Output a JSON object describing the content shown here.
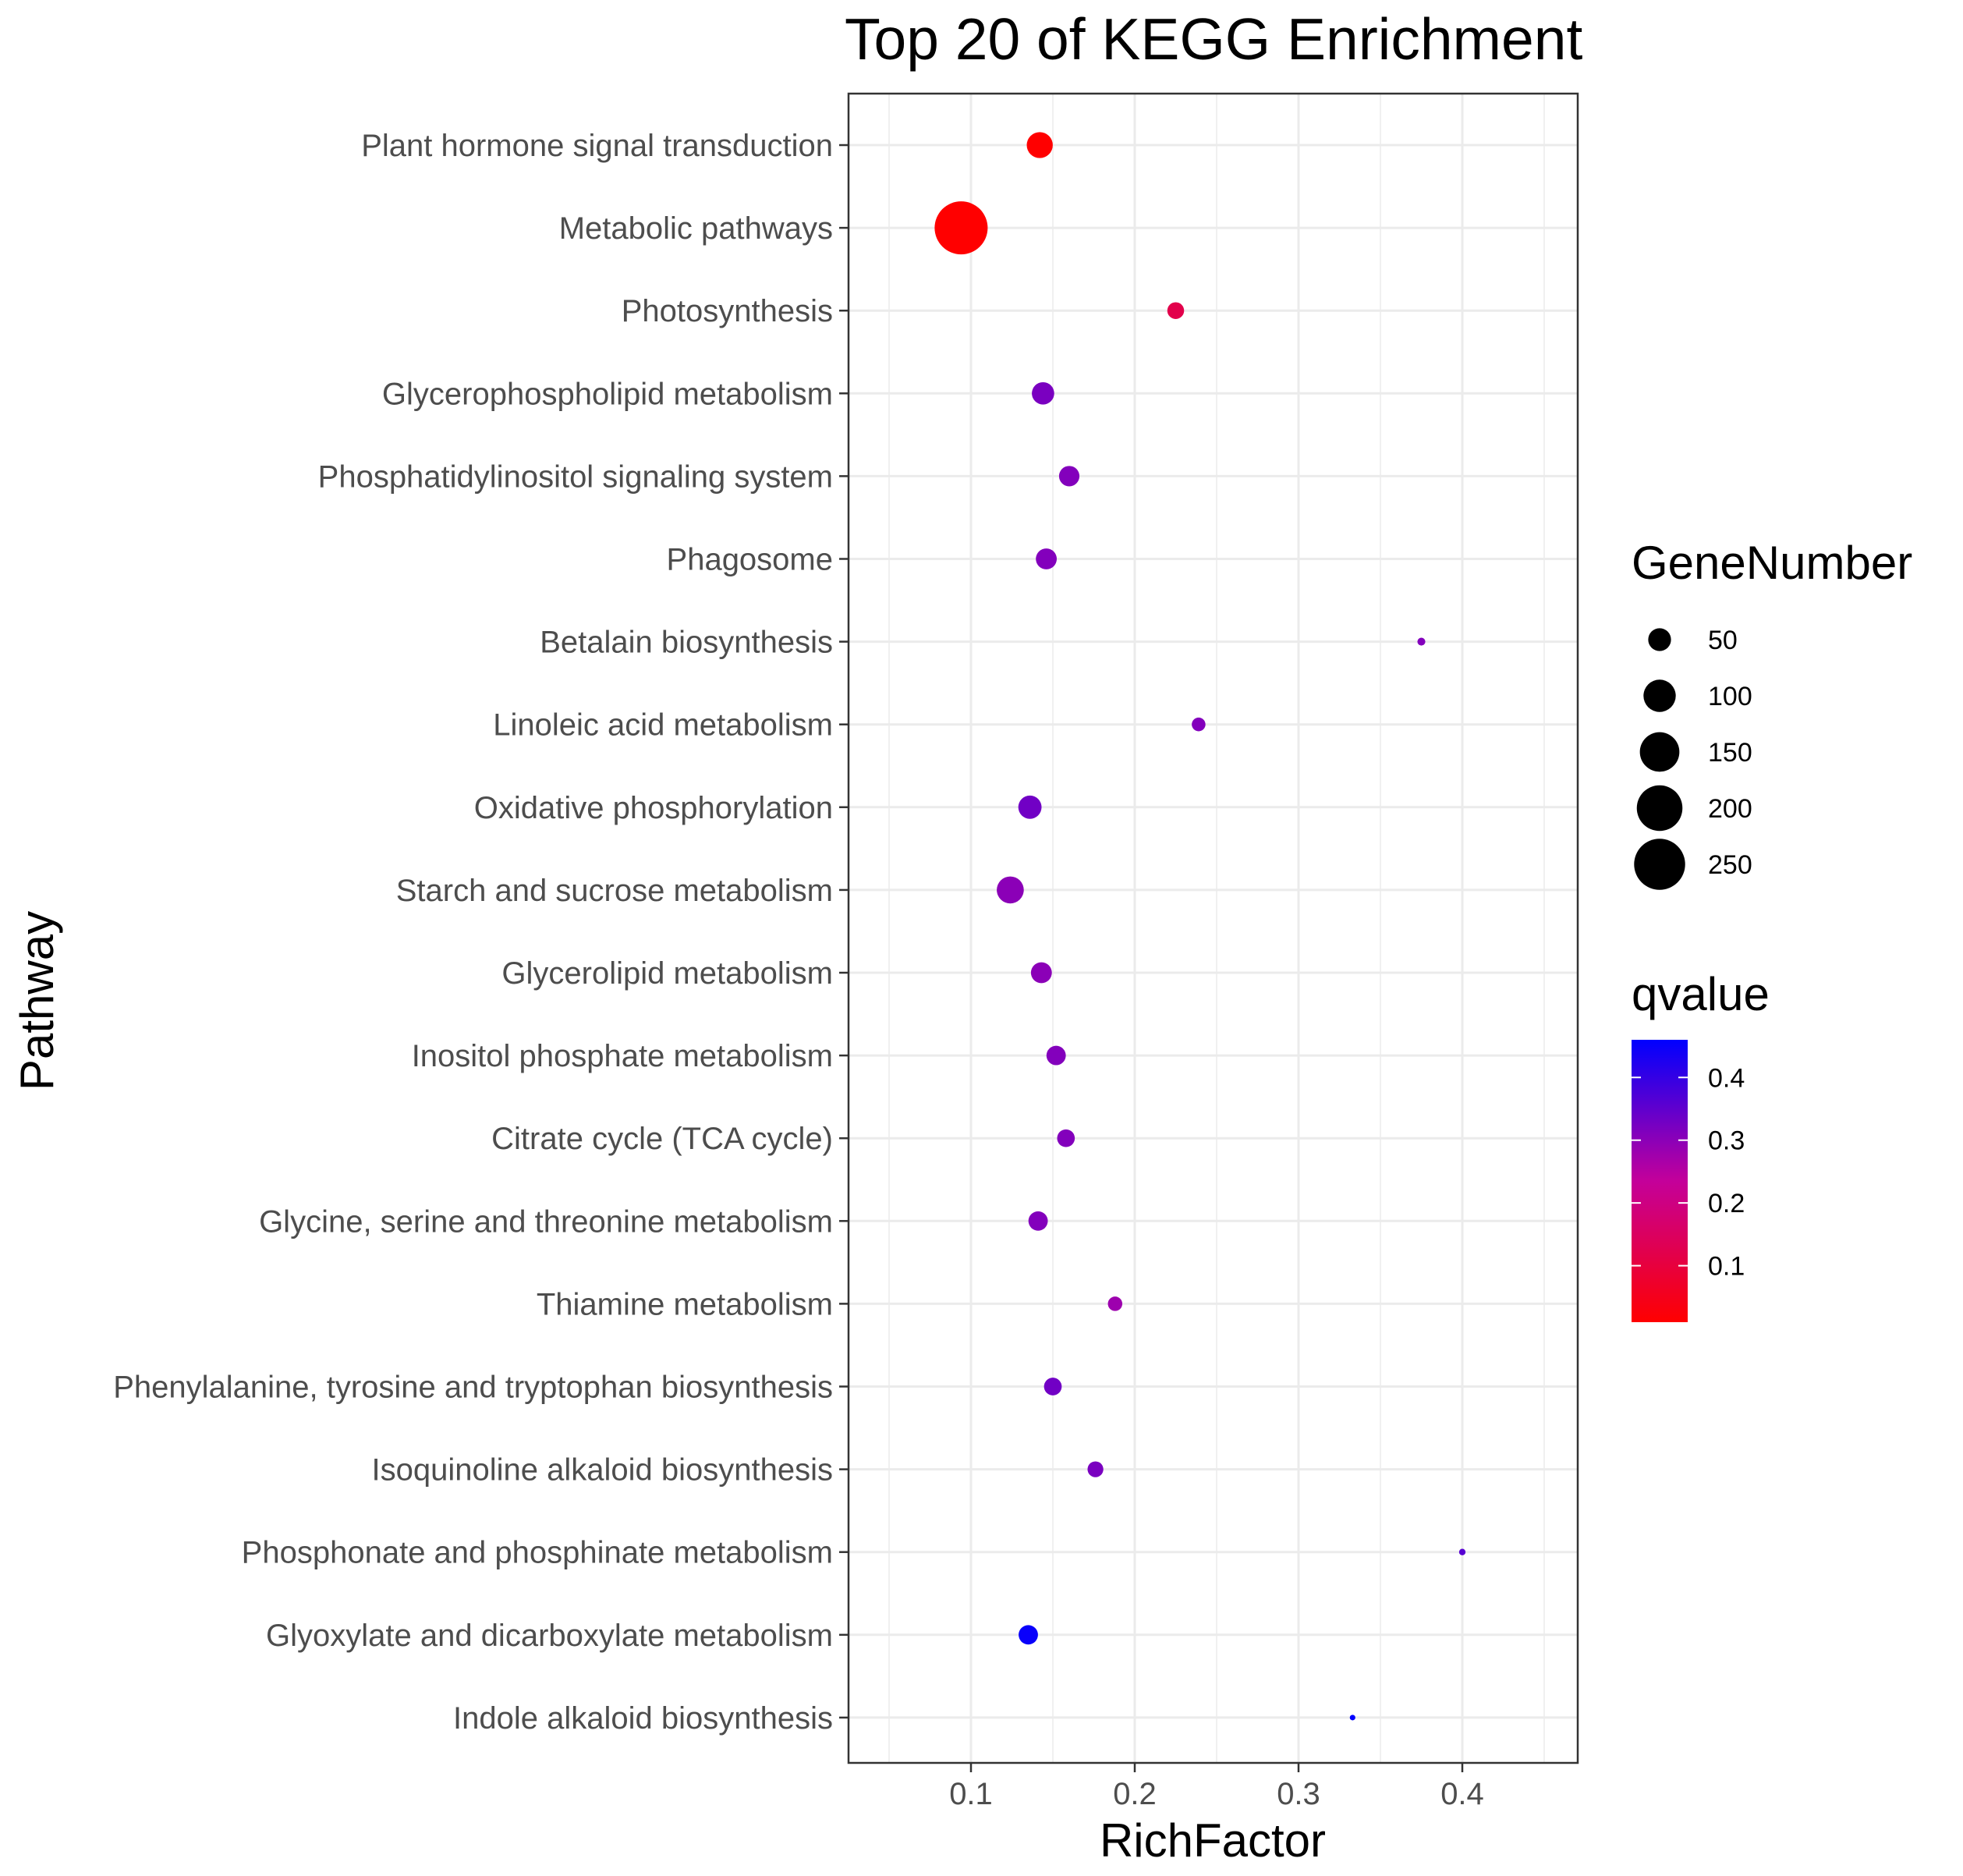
{
  "chart_data": {
    "type": "scatter",
    "title": "Top 20 of KEGG Enrichment",
    "xlabel": "RichFactor",
    "ylabel": "Pathway",
    "xlim": [
      0.03,
      0.47
    ],
    "x_ticks": [
      0.1,
      0.2,
      0.3,
      0.4
    ],
    "x_tick_labels": [
      "0.1",
      "0.2",
      "0.3",
      "0.4"
    ],
    "grid": true,
    "legend_position": "right",
    "size_legend": {
      "title": "GeneNumber",
      "values": [
        50,
        100,
        150,
        200,
        250
      ],
      "labels": [
        "50",
        "100",
        "150",
        "200",
        "250"
      ]
    },
    "color_legend": {
      "title": "qvalue",
      "low_color": "#ff0000",
      "high_color": "#0000ff",
      "range": [
        0.01,
        0.46
      ],
      "ticks": [
        0.1,
        0.2,
        0.3,
        0.4
      ],
      "tick_labels": [
        "0.1",
        "0.2",
        "0.3",
        "0.4"
      ]
    },
    "points": [
      {
        "pathway": "Plant hormone signal transduction",
        "rich_factor": 0.142,
        "gene_number": 65,
        "qvalue": 0.01
      },
      {
        "pathway": "Metabolic pathways",
        "rich_factor": 0.094,
        "gene_number": 270,
        "qvalue": 0.01
      },
      {
        "pathway": "Photosynthesis",
        "rich_factor": 0.225,
        "gene_number": 27,
        "qvalue": 0.12
      },
      {
        "pathway": "Glycerophospholipid metabolism",
        "rich_factor": 0.144,
        "gene_number": 48,
        "qvalue": 0.32
      },
      {
        "pathway": "Phosphatidylinositol signaling system",
        "rich_factor": 0.16,
        "gene_number": 40,
        "qvalue": 0.31
      },
      {
        "pathway": "Phagosome",
        "rich_factor": 0.146,
        "gene_number": 42,
        "qvalue": 0.31
      },
      {
        "pathway": "Betalain biosynthesis",
        "rich_factor": 0.375,
        "gene_number": 6,
        "qvalue": 0.31
      },
      {
        "pathway": "Linoleic acid metabolism",
        "rich_factor": 0.239,
        "gene_number": 18,
        "qvalue": 0.31
      },
      {
        "pathway": "Oxidative phosphorylation",
        "rich_factor": 0.136,
        "gene_number": 52,
        "qvalue": 0.33
      },
      {
        "pathway": "Starch and sucrose metabolism",
        "rich_factor": 0.124,
        "gene_number": 70,
        "qvalue": 0.3
      },
      {
        "pathway": "Glycerolipid metabolism",
        "rich_factor": 0.143,
        "gene_number": 42,
        "qvalue": 0.3
      },
      {
        "pathway": "Inositol phosphate metabolism",
        "rich_factor": 0.152,
        "gene_number": 36,
        "qvalue": 0.31
      },
      {
        "pathway": "Citrate cycle (TCA cycle)",
        "rich_factor": 0.158,
        "gene_number": 30,
        "qvalue": 0.31
      },
      {
        "pathway": "Glycine, serine and threonine metabolism",
        "rich_factor": 0.141,
        "gene_number": 36,
        "qvalue": 0.31
      },
      {
        "pathway": "Thiamine metabolism",
        "rich_factor": 0.188,
        "gene_number": 20,
        "qvalue": 0.28
      },
      {
        "pathway": "Phenylalanine, tyrosine and tryptophan biosynthesis",
        "rich_factor": 0.15,
        "gene_number": 30,
        "qvalue": 0.33
      },
      {
        "pathway": "Isoquinoline alkaloid biosynthesis",
        "rich_factor": 0.176,
        "gene_number": 24,
        "qvalue": 0.32
      },
      {
        "pathway": "Phosphonate and phosphinate metabolism",
        "rich_factor": 0.4,
        "gene_number": 4,
        "qvalue": 0.36
      },
      {
        "pathway": "Glyoxylate and dicarboxylate metabolism",
        "rich_factor": 0.135,
        "gene_number": 36,
        "qvalue": 0.45
      },
      {
        "pathway": "Indole alkaloid biosynthesis",
        "rich_factor": 0.333,
        "gene_number": 3,
        "qvalue": 0.46
      }
    ]
  }
}
